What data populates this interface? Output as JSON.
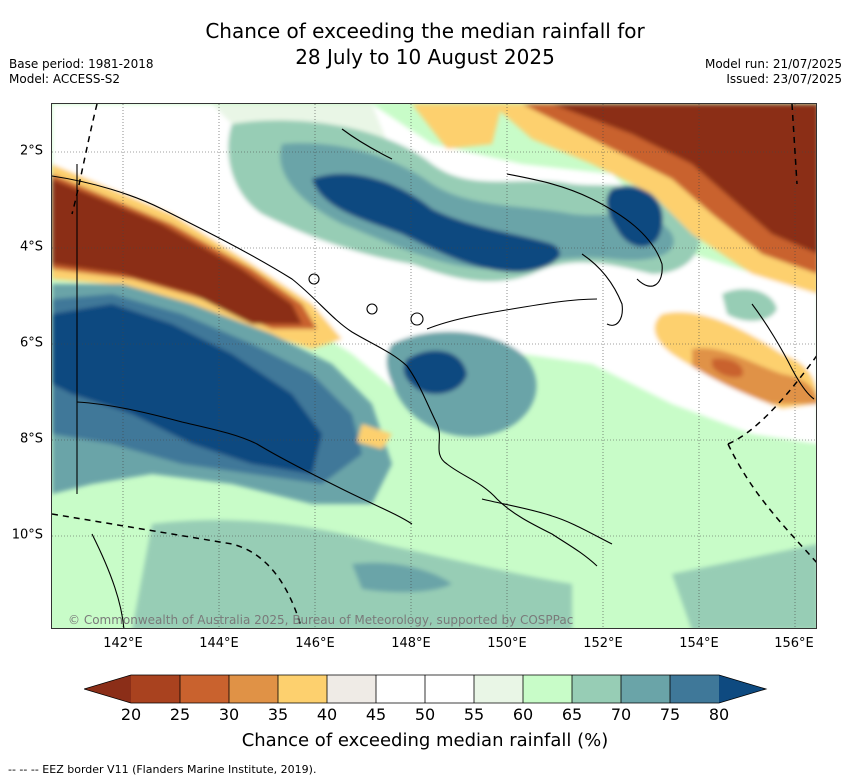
{
  "title": {
    "line1": "Chance of exceeding the median rainfall for",
    "line2": "28 July to 10 August 2025"
  },
  "meta_left": {
    "base_period": "Base period: 1981-2018",
    "model": "Model: ACCESS-S2"
  },
  "meta_right": {
    "model_run": "Model run: 21/07/2025",
    "issued": "Issued: 23/07/2025"
  },
  "map": {
    "lat_labels": [
      "2°S",
      "4°S",
      "6°S",
      "8°S",
      "10°S"
    ],
    "lon_labels": [
      "142°E",
      "144°E",
      "146°E",
      "148°E",
      "150°E",
      "152°E",
      "154°E",
      "156°E"
    ],
    "credit": "© Commonwealth of Australia 2025, Bureau of Meteorology, supported by COSPPac"
  },
  "colorbar": {
    "ticks": [
      "20",
      "25",
      "30",
      "35",
      "40",
      "45",
      "50",
      "55",
      "60",
      "65",
      "70",
      "75",
      "80"
    ],
    "colors": {
      "lt20": "#8b2e18",
      "20-25": "#a9421f",
      "25-30": "#c9622e",
      "30-35": "#e09246",
      "35-40": "#fdd06e",
      "40-45": "#efebe6",
      "45-50": "#ffffff",
      "50-55": "#ffffff",
      "55-60": "#e9f6e6",
      "60-65": "#c8fcc8",
      "65-70": "#97cdb5",
      "70-75": "#6aa4a8",
      "75-80": "#3f7899",
      "gt80": "#0e4a80"
    },
    "label": "Chance of exceeding median rainfall (%)"
  },
  "footnote": "-- -- -- EEZ border V11 (Flanders Marine Institute, 2019)."
}
